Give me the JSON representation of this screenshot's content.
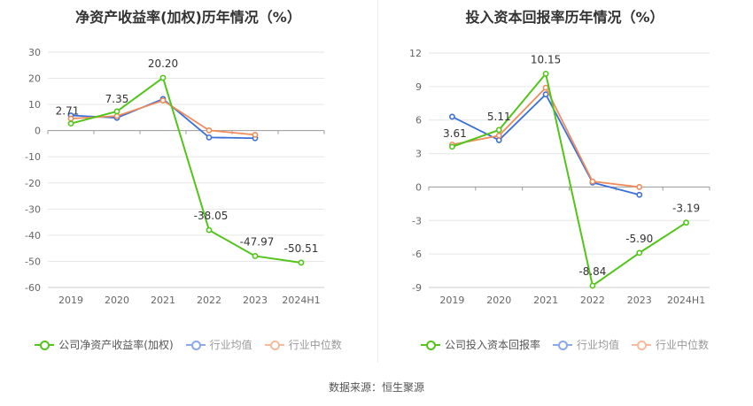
{
  "source_label": "数据来源：恒生聚源",
  "chart_data": [
    {
      "type": "line",
      "title": "净资产收益率(加权)历年情况（%）",
      "categories": [
        "2019",
        "2020",
        "2021",
        "2022",
        "2023",
        "2024H1"
      ],
      "yticks": [
        30,
        20,
        10,
        0,
        -10,
        -20,
        -30,
        -40,
        -50,
        -60
      ],
      "ylim": [
        -60,
        30
      ],
      "grid": true,
      "legend_position": "bottom",
      "series": [
        {
          "name": "公司净资产收益率(加权)",
          "color": "#52c41a",
          "values": [
            2.71,
            7.35,
            20.2,
            -38.05,
            -47.97,
            -50.51
          ],
          "labels": [
            "2.71",
            "7.35",
            "20.20",
            "-38.05",
            "-47.97",
            "-50.51"
          ],
          "faded": false
        },
        {
          "name": "行业均值",
          "color": "#3a6fd8",
          "values": [
            5.8,
            4.9,
            12.1,
            -2.6,
            -2.9,
            null
          ],
          "faded": true
        },
        {
          "name": "行业中位数",
          "color": "#f08c5b",
          "values": [
            4.6,
            5.6,
            11.5,
            0.1,
            -1.6,
            null
          ],
          "faded": true
        }
      ]
    },
    {
      "type": "line",
      "title": "投入资本回报率历年情况（%）",
      "categories": [
        "2019",
        "2020",
        "2021",
        "2022",
        "2023",
        "2024H1"
      ],
      "yticks": [
        12,
        9,
        6,
        3,
        0,
        -3,
        -6,
        -9
      ],
      "ylim": [
        -9,
        12
      ],
      "grid": true,
      "legend_position": "bottom",
      "series": [
        {
          "name": "公司投入资本回报率",
          "color": "#52c41a",
          "values": [
            3.61,
            5.11,
            10.15,
            -8.84,
            -5.9,
            -3.19
          ],
          "labels": [
            "3.61",
            "5.11",
            "10.15",
            "-8.84",
            "-5.90",
            "-3.19"
          ],
          "faded": false
        },
        {
          "name": "行业均值",
          "color": "#3a6fd8",
          "values": [
            6.3,
            4.2,
            8.3,
            0.4,
            -0.7,
            null
          ],
          "faded": true
        },
        {
          "name": "行业中位数",
          "color": "#f08c5b",
          "values": [
            3.8,
            4.6,
            8.9,
            0.5,
            0.0,
            null
          ],
          "faded": true
        }
      ]
    }
  ]
}
